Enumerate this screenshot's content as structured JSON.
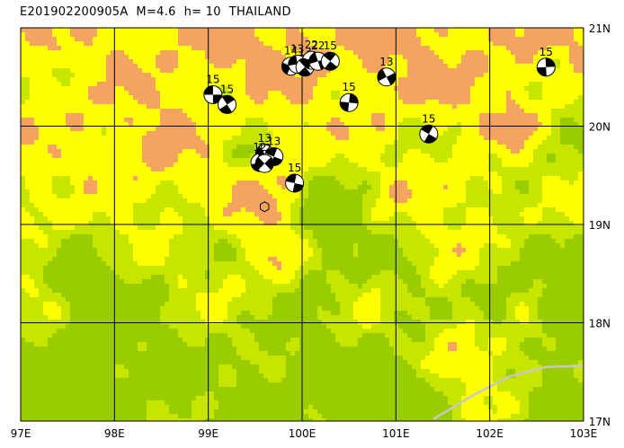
{
  "title": "E201902200905A  M=4.6  h= 10  THAILAND",
  "map": {
    "lon_range": [
      97,
      103
    ],
    "lat_range": [
      17,
      21
    ],
    "lon_labels": [
      "97E",
      "98E",
      "99E",
      "100E",
      "101E",
      "102E",
      "103E"
    ],
    "lat_labels": [
      "21N",
      "20N",
      "19N",
      "18N",
      "17N"
    ],
    "colors": {
      "lowland": "#9acd00",
      "midland": "#c6e600",
      "highland": "#ffff00",
      "peak": "#f4a460",
      "grid": "#000000",
      "border": "#c8c8c8"
    },
    "epicenter": {
      "lon": 99.6,
      "lat": 19.18
    },
    "mechanisms": [
      {
        "lon": 99.05,
        "lat": 20.32,
        "label": "15"
      },
      {
        "lon": 99.2,
        "lat": 20.22,
        "label": "15"
      },
      {
        "lon": 99.88,
        "lat": 20.61,
        "label": "14"
      },
      {
        "lon": 99.95,
        "lat": 20.63,
        "label": "13"
      },
      {
        "lon": 100.03,
        "lat": 20.6,
        "label": "13"
      },
      {
        "lon": 100.1,
        "lat": 20.67,
        "label": "22"
      },
      {
        "lon": 100.17,
        "lat": 20.66,
        "label": "22"
      },
      {
        "lon": 100.3,
        "lat": 20.66,
        "label": "15"
      },
      {
        "lon": 100.5,
        "lat": 20.24,
        "label": "15"
      },
      {
        "lon": 100.9,
        "lat": 20.5,
        "label": "13"
      },
      {
        "lon": 101.35,
        "lat": 19.92,
        "label": "15"
      },
      {
        "lon": 102.6,
        "lat": 20.6,
        "label": "15"
      },
      {
        "lon": 99.6,
        "lat": 19.72,
        "label": "13"
      },
      {
        "lon": 99.7,
        "lat": 19.69,
        "label": "13"
      },
      {
        "lon": 99.55,
        "lat": 19.63,
        "label": "12"
      },
      {
        "lon": 99.6,
        "lat": 19.62,
        "label": "12"
      },
      {
        "lon": 99.92,
        "lat": 19.42,
        "label": "15"
      }
    ]
  }
}
